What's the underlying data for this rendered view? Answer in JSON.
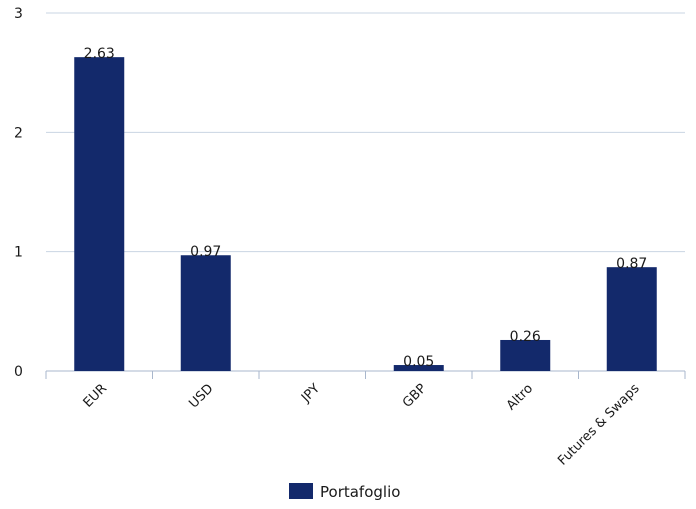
{
  "chart_data": {
    "type": "bar",
    "title": "",
    "xlabel": "",
    "ylabel": "",
    "categories": [
      "EUR",
      "USD",
      "JPY",
      "GBP",
      "Altro",
      "Futures & Swaps"
    ],
    "series": [
      {
        "name": "Portafoglio",
        "values": [
          2.63,
          0.97,
          0,
          0.05,
          0.26,
          0.87
        ],
        "data_labels": [
          "2.63",
          "0.97",
          "",
          "0.05",
          "0.26",
          "0.87"
        ],
        "color": "#13296b"
      }
    ],
    "ylim": [
      0,
      3
    ],
    "yticks": [
      0,
      1,
      2,
      3
    ],
    "grid": true,
    "legend": "bottom-center"
  },
  "colors": {
    "bar": "#13296b",
    "grid": "#c9d4e3",
    "axis": "#a9b7cc"
  }
}
